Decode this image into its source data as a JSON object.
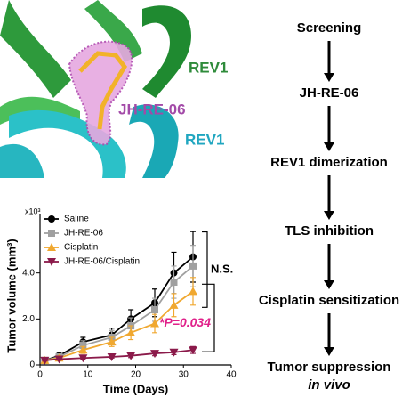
{
  "image_labels": [
    "REV1",
    "JH-RE-06",
    "REV1"
  ],
  "flow": {
    "steps": [
      "Screening",
      "JH-RE-06",
      "REV1 dimerization",
      "TLS inhibition",
      "Cisplatin sensitization",
      "Tumor suppression",
      "in vivo"
    ]
  },
  "chart_data": {
    "type": "line",
    "x_label": "Time (Days)",
    "y_label": "Tumor volume (mm³)",
    "y_multiplier": "x10³",
    "x": [
      1,
      4,
      9,
      15,
      19,
      24,
      28,
      32
    ],
    "xlim": [
      0,
      40
    ],
    "xticks": [
      0,
      10,
      20,
      30,
      40
    ],
    "ylim": [
      0,
      6
    ],
    "yticks": [
      0,
      {
        "value": 2,
        "label": "2.0"
      },
      {
        "value": 4,
        "label": "4.0"
      }
    ],
    "series": [
      {
        "name": "Saline",
        "color": "#000000",
        "marker": "circle",
        "values": [
          0.2,
          0.4,
          1.0,
          1.3,
          2.0,
          2.7,
          4.0,
          4.7
        ],
        "errors": [
          0.05,
          0.15,
          0.2,
          0.3,
          0.4,
          0.6,
          0.9,
          1.1
        ]
      },
      {
        "name": "JH-RE-06",
        "color": "#a0a0a0",
        "marker": "square",
        "values": [
          0.2,
          0.35,
          0.85,
          1.2,
          1.7,
          2.4,
          3.6,
          4.3
        ],
        "errors": [
          0.05,
          0.1,
          0.2,
          0.3,
          0.35,
          0.5,
          0.7,
          0.9
        ]
      },
      {
        "name": "Cisplatin",
        "color": "#f0a830",
        "marker": "triangle",
        "values": [
          0.2,
          0.3,
          0.65,
          1.0,
          1.4,
          1.8,
          2.6,
          3.2
        ],
        "errors": [
          0.05,
          0.1,
          0.15,
          0.2,
          0.3,
          0.4,
          0.5,
          0.6
        ]
      },
      {
        "name": "JH-RE-06/Cisplatin",
        "color": "#8b1a4a",
        "marker": "triangle-down",
        "values": [
          0.2,
          0.25,
          0.3,
          0.35,
          0.4,
          0.5,
          0.55,
          0.65
        ],
        "errors": [
          0.03,
          0.05,
          0.05,
          0.05,
          0.08,
          0.1,
          0.1,
          0.15
        ]
      }
    ],
    "annotations": [
      "N.S.",
      "*P=0.034"
    ]
  }
}
